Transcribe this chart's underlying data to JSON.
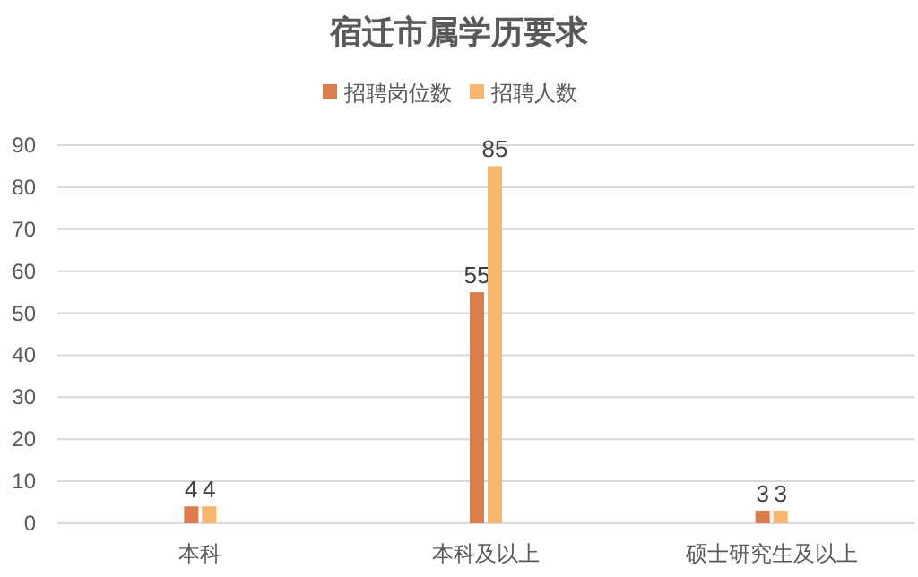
{
  "chart_data": {
    "type": "bar",
    "title": "宿迁市属学历要求",
    "categories": [
      "本科",
      "本科及以上",
      "硕士研究生及以上"
    ],
    "series": [
      {
        "name": "招聘岗位数",
        "color": "#dc7b4e",
        "values": [
          4,
          55,
          3
        ]
      },
      {
        "name": "招聘人数",
        "color": "#f7b56f",
        "values": [
          4,
          85,
          3
        ]
      }
    ],
    "ylim": [
      0,
      90
    ],
    "yticks": [
      0,
      10,
      20,
      30,
      40,
      50,
      60,
      70,
      80,
      90
    ],
    "grid": "y",
    "legend": "top",
    "data_labels": true
  }
}
